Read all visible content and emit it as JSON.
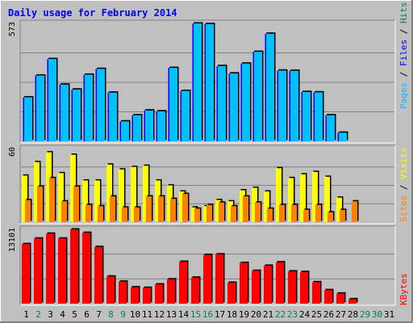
{
  "chart_data": {
    "type": "bar",
    "title": "Daily usage for February 2014",
    "days": [
      "1",
      "2",
      "3",
      "4",
      "5",
      "6",
      "7",
      "8",
      "9",
      "10",
      "11",
      "12",
      "13",
      "14",
      "15",
      "16",
      "17",
      "18",
      "19",
      "20",
      "21",
      "22",
      "23",
      "24",
      "25",
      "26",
      "27",
      "28",
      "29",
      "30",
      "31"
    ],
    "weekend_days": [
      "2",
      "8",
      "9",
      "15",
      "16",
      "22",
      "23",
      "29",
      "30"
    ],
    "panels": [
      {
        "id": "hits",
        "ymax_label": "573",
        "ymax": 573,
        "series": [
          {
            "name": "Hits",
            "color": "#00805c",
            "values": [
              0,
              0,
              0,
              0,
              0,
              0,
              0,
              0,
              0,
              0,
              0,
              0,
              0,
              0,
              0,
              0,
              0,
              0,
              0,
              0,
              0,
              0,
              0,
              0,
              0,
              0,
              0,
              0,
              0,
              0,
              0
            ]
          },
          {
            "name": "Files",
            "color": "#0000ff",
            "values": [
              214,
              320,
              400,
              276,
              252,
              324,
              352,
              237,
              97,
              127,
              150,
              146,
              357,
              245,
              573,
              570,
              366,
              330,
              378,
              435,
              523,
              344,
              343,
              240,
              238,
              127,
              42,
              0,
              0,
              0,
              0
            ]
          },
          {
            "name": "Pages",
            "color": "#00c0ff",
            "values": [
              214,
              320,
              400,
              276,
              252,
              324,
              352,
              237,
              97,
              127,
              150,
              146,
              357,
              245,
              573,
              570,
              366,
              330,
              378,
              435,
              523,
              344,
              343,
              240,
              238,
              127,
              42,
              0,
              0,
              0,
              0
            ]
          }
        ]
      },
      {
        "id": "visits",
        "ymax_label": "60",
        "ymax": 60,
        "series": [
          {
            "name": "Visits",
            "color": "#ffff00",
            "values": [
              38,
              49,
              57,
              40,
              55,
              34,
              34,
              47,
              43,
              45,
              46,
              34,
              30,
              25,
              12,
              13,
              18,
              17,
              26,
              28,
              25,
              44,
              36,
              39,
              41,
              37,
              20,
              0,
              0,
              0,
              0
            ]
          },
          {
            "name": "Sites",
            "color": "#ff8000",
            "values": [
              18,
              29,
              36,
              17,
              29,
              14,
              13,
              21,
              12,
              12,
              21,
              21,
              19,
              23,
              11,
              14,
              16,
              13,
              21,
              16,
              11,
              14,
              14,
              10,
              14,
              8,
              10,
              17,
              0,
              0,
              0
            ]
          }
        ]
      },
      {
        "id": "kbytes",
        "ymax_label": "13101",
        "ymax": 13101,
        "series": [
          {
            "name": "KBytes",
            "color": "#ff0000",
            "values": [
              10520,
              11500,
              12350,
              11500,
              13101,
              12500,
              10000,
              4800,
              3900,
              2900,
              2800,
              3400,
              4300,
              7400,
              4600,
              8600,
              8700,
              3700,
              7200,
              5800,
              6700,
              7300,
              5700,
              5600,
              3800,
              2400,
              1800,
              800,
              0,
              0,
              0
            ]
          }
        ]
      }
    ],
    "side_labels": {
      "hits": [
        {
          "text": "Pages",
          "color": "#00c0ff"
        },
        {
          "text": " / ",
          "color": "#000000"
        },
        {
          "text": "Files",
          "color": "#0000ff"
        },
        {
          "text": " / ",
          "color": "#000000"
        },
        {
          "text": "Hits",
          "color": "#00805c"
        }
      ],
      "visits": [
        {
          "text": "Sites",
          "color": "#ff8000"
        },
        {
          "text": " / ",
          "color": "#000000"
        },
        {
          "text": "Visits",
          "color": "#ffff00"
        }
      ],
      "kbytes": [
        {
          "text": "KBytes",
          "color": "#ff0000"
        }
      ]
    },
    "colors": {
      "background": "#c0c0c0",
      "frame": "#b0b0b0",
      "title": "#0000ff",
      "weekday_label": "#000000",
      "weekend_label": "#00805c",
      "gridline": "#808080"
    }
  }
}
